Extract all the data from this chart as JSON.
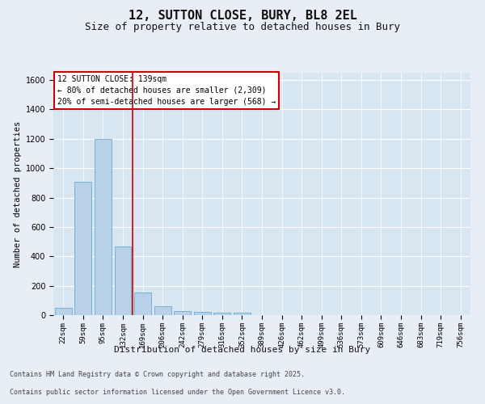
{
  "title1": "12, SUTTON CLOSE, BURY, BL8 2EL",
  "title2": "Size of property relative to detached houses in Bury",
  "xlabel": "Distribution of detached houses by size in Bury",
  "ylabel": "Number of detached properties",
  "categories": [
    "22sqm",
    "59sqm",
    "95sqm",
    "132sqm",
    "169sqm",
    "206sqm",
    "242sqm",
    "279sqm",
    "316sqm",
    "352sqm",
    "389sqm",
    "426sqm",
    "462sqm",
    "499sqm",
    "536sqm",
    "573sqm",
    "609sqm",
    "646sqm",
    "683sqm",
    "719sqm",
    "756sqm"
  ],
  "values": [
    50,
    910,
    1200,
    470,
    155,
    60,
    30,
    20,
    15,
    15,
    0,
    0,
    0,
    0,
    0,
    0,
    0,
    0,
    0,
    0,
    0
  ],
  "bar_color": "#b8d0e8",
  "bar_edge_color": "#6aaad4",
  "bar_linewidth": 0.6,
  "red_line_x": 3.5,
  "red_line_color": "#cc0000",
  "annotation_text": "12 SUTTON CLOSE: 139sqm\n← 80% of detached houses are smaller (2,309)\n20% of semi-detached houses are larger (568) →",
  "annotation_box_color": "#cc0000",
  "annotation_text_color": "#000000",
  "annotation_fontsize": 7,
  "ylim": [
    0,
    1650
  ],
  "yticks": [
    0,
    200,
    400,
    600,
    800,
    1000,
    1200,
    1400,
    1600
  ],
  "background_color": "#e8eef5",
  "plot_background_color": "#d8e6f2",
  "grid_color": "#ffffff",
  "footer_line1": "Contains HM Land Registry data © Crown copyright and database right 2025.",
  "footer_line2": "Contains public sector information licensed under the Open Government Licence v3.0.",
  "title1_fontsize": 11,
  "title2_fontsize": 9,
  "xlabel_fontsize": 8,
  "ylabel_fontsize": 7.5,
  "ytick_fontsize": 7,
  "xtick_fontsize": 6.5,
  "footer_fontsize": 6
}
